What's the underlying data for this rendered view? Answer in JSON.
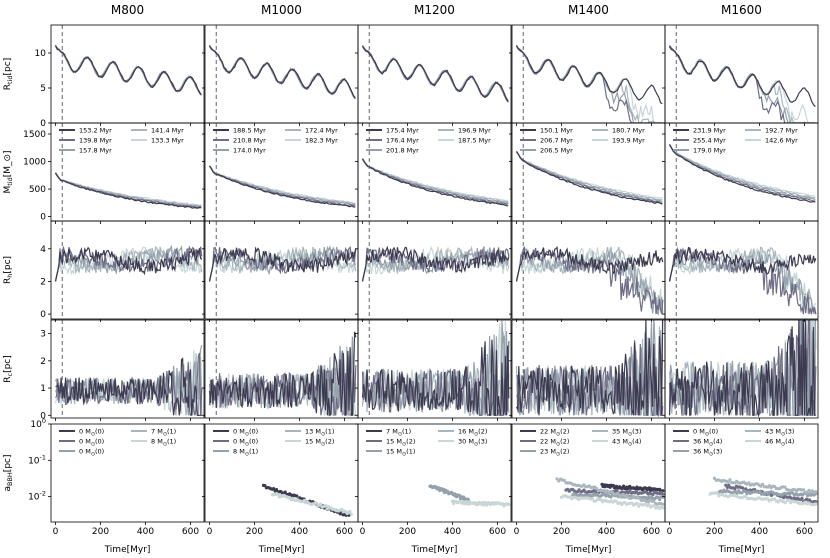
{
  "chart_data": {
    "type": "line",
    "columns": [
      "M800",
      "M1000",
      "M1200",
      "M1400",
      "M1600"
    ],
    "xlabel": "Time[Myr]",
    "xticks": [
      0,
      200,
      400,
      600
    ],
    "xlim": [
      -20,
      660
    ],
    "series_colors": [
      "#3c3a4f",
      "#6f6d86",
      "#94a0ab",
      "#a9b6bd",
      "#c8d6d6"
    ],
    "panels": [
      {
        "ylabel": "R_tid[pc]",
        "ylim": [
          0,
          14
        ],
        "yticks": [
          0,
          5,
          10
        ],
        "scale": "linear"
      },
      {
        "ylabel": "M_tid[M_⊙]",
        "ylim": [
          -80,
          1700
        ],
        "yticks": [
          0,
          500,
          1000,
          1500
        ],
        "scale": "linear"
      },
      {
        "ylabel": "R_h[pc]",
        "ylim": [
          -0.3,
          5.7
        ],
        "yticks": [
          0,
          2,
          4
        ],
        "scale": "linear"
      },
      {
        "ylabel": "R_c[pc]",
        "ylim": [
          -0.1,
          3.5
        ],
        "yticks": [
          0,
          1,
          2,
          3
        ],
        "scale": "linear"
      },
      {
        "ylabel": "a_BBH[pc]",
        "ylim": [
          0.002,
          1
        ],
        "yticks": [
          "10^-2",
          "10^-1",
          "10^0"
        ],
        "scale": "log"
      }
    ],
    "columns_data": [
      {
        "mass": 800,
        "legend_time": [
          [
            "153.2 Myr",
            "139.8 Myr",
            "157.8 Myr"
          ],
          [
            "141.4 Myr",
            "133.3 Myr"
          ]
        ],
        "legend_bbh": [
          [
            "0 M_⊙(0)",
            "0 M_⊙(0)",
            "0 M_⊙(0)"
          ],
          [
            "7 M_⊙(1)",
            "8 M_⊙(1)"
          ]
        ],
        "bbh": []
      },
      {
        "mass": 1000,
        "legend_time": [
          [
            "188.5 Myr",
            "210.8 Myr",
            "174.0 Myr"
          ],
          [
            "172.4 Myr",
            "182.3 Myr"
          ]
        ],
        "legend_bbh": [
          [
            "0 M_⊙(0)",
            "0 M_⊙(0)",
            "8 M_⊙(1)"
          ],
          [
            "13 M_⊙(1)",
            "15 M_⊙(2)"
          ]
        ],
        "bbh": [
          {
            "series": 0,
            "t0": 240,
            "t1": 620,
            "a0": 0.02,
            "a1": 0.003
          },
          {
            "series": 4,
            "t0": 280,
            "t1": 630,
            "a0": 0.012,
            "a1": 0.0035
          }
        ]
      },
      {
        "mass": 1200,
        "legend_time": [
          [
            "175.4 Myr",
            "176.4 Myr",
            "201.8 Myr"
          ],
          [
            "196.9 Myr",
            "187.5 Myr"
          ]
        ],
        "legend_bbh": [
          [
            "7 M_⊙(1)",
            "15 M_⊙(2)",
            "15 M_⊙(1)"
          ],
          [
            "16 M_⊙(2)",
            "30 M_⊙(3)"
          ]
        ],
        "bbh": [
          {
            "series": 2,
            "t0": 300,
            "t1": 470,
            "a0": 0.02,
            "a1": 0.008
          },
          {
            "series": 4,
            "t0": 400,
            "t1": 650,
            "a0": 0.007,
            "a1": 0.006
          }
        ]
      },
      {
        "mass": 1400,
        "legend_time": [
          [
            "150.1 Myr",
            "206.7 Myr",
            "206.5 Myr"
          ],
          [
            "180.7 Myr",
            "193.9 Myr"
          ]
        ],
        "legend_bbh": [
          [
            "22 M_⊙(2)",
            "22 M_⊙(2)",
            "23 M_⊙(2)"
          ],
          [
            "35 M_⊙(3)",
            "43 M_⊙(4)"
          ]
        ],
        "bbh": [
          {
            "series": 0,
            "t0": 380,
            "t1": 650,
            "a0": 0.02,
            "a1": 0.015
          },
          {
            "series": 1,
            "t0": 220,
            "t1": 650,
            "a0": 0.015,
            "a1": 0.012
          },
          {
            "series": 2,
            "t0": 250,
            "t1": 650,
            "a0": 0.012,
            "a1": 0.009
          },
          {
            "series": 3,
            "t0": 180,
            "t1": 650,
            "a0": 0.03,
            "a1": 0.006
          },
          {
            "series": 4,
            "t0": 200,
            "t1": 650,
            "a0": 0.01,
            "a1": 0.005
          }
        ]
      },
      {
        "mass": 1600,
        "legend_time": [
          [
            "231.9 Myr",
            "255.4 Myr",
            "179.0 Myr"
          ],
          [
            "192.7 Myr",
            "142.6 Myr"
          ]
        ],
        "legend_bbh": [
          [
            "0 M_⊙(0)",
            "36 M_⊙(4)",
            "36 M_⊙(3)"
          ],
          [
            "43 M_⊙(3)",
            "46 M_⊙(4)"
          ]
        ],
        "bbh": [
          {
            "series": 1,
            "t0": 250,
            "t1": 650,
            "a0": 0.02,
            "a1": 0.007
          },
          {
            "series": 2,
            "t0": 220,
            "t1": 650,
            "a0": 0.014,
            "a1": 0.011
          },
          {
            "series": 3,
            "t0": 200,
            "t1": 650,
            "a0": 0.03,
            "a1": 0.013
          },
          {
            "series": 4,
            "t0": 180,
            "t1": 650,
            "a0": 0.012,
            "a1": 0.006
          }
        ]
      }
    ]
  }
}
